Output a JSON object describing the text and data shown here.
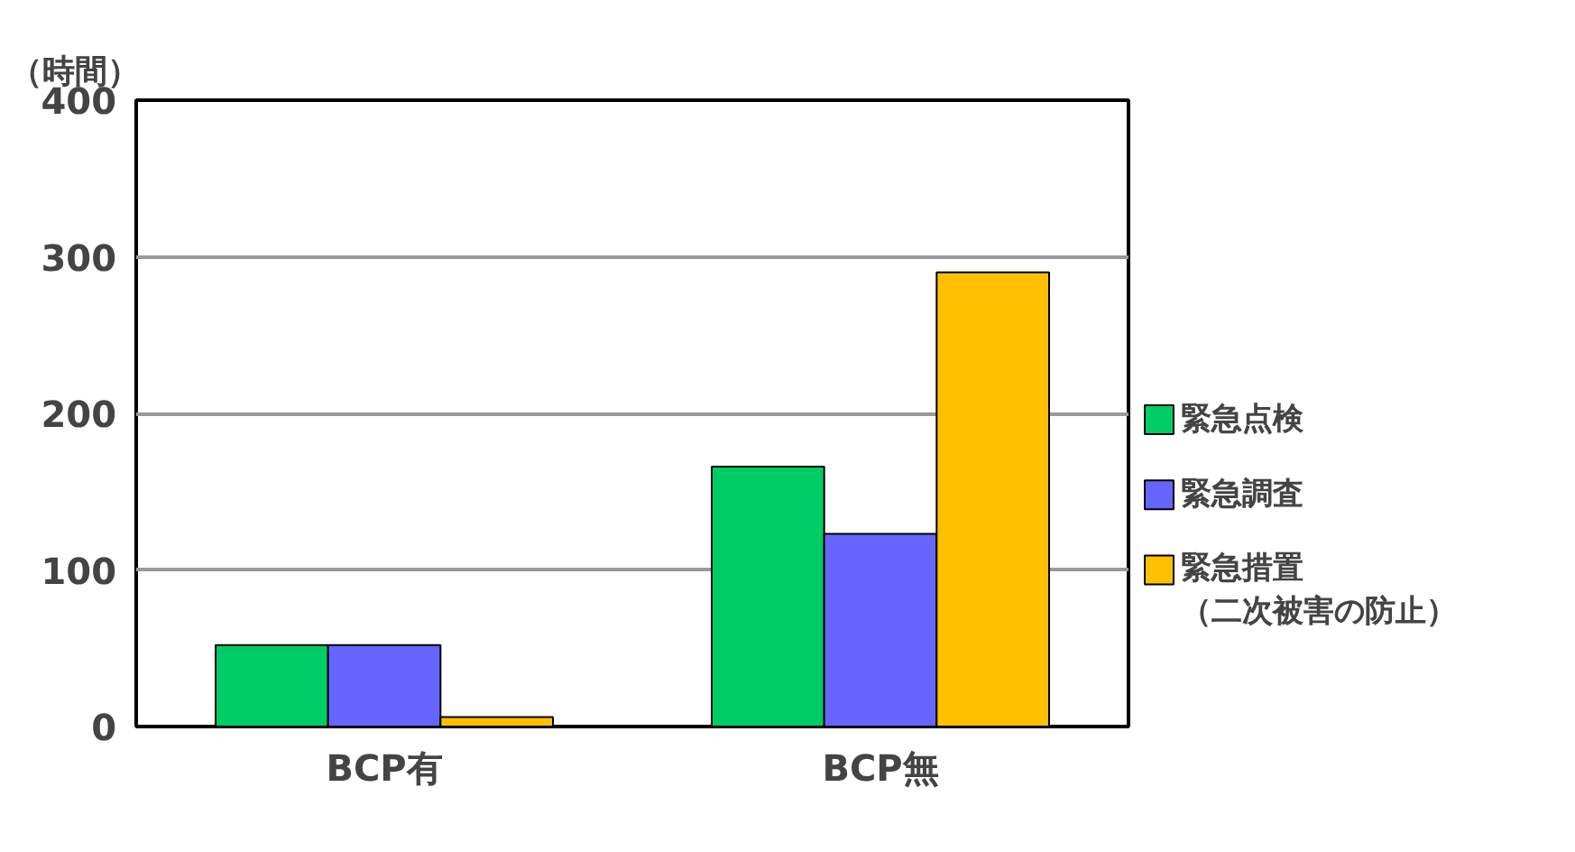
{
  "chart_data": {
    "type": "bar",
    "ylabel": "（時間）",
    "categories": [
      "BCP有",
      "BCP無"
    ],
    "series": [
      {
        "name": "緊急点検",
        "color": "#00cc66",
        "values": [
          52,
          166
        ]
      },
      {
        "name": "緊急調査",
        "color": "#6666ff",
        "values": [
          52,
          123
        ]
      },
      {
        "name": "緊急措置（二次被害の防止）",
        "color": "#ffc000",
        "values": [
          6,
          290
        ]
      }
    ],
    "ylim": [
      0,
      400
    ],
    "yticks": [
      0,
      100,
      200,
      300,
      400
    ],
    "grid": "y",
    "legend": "right"
  }
}
